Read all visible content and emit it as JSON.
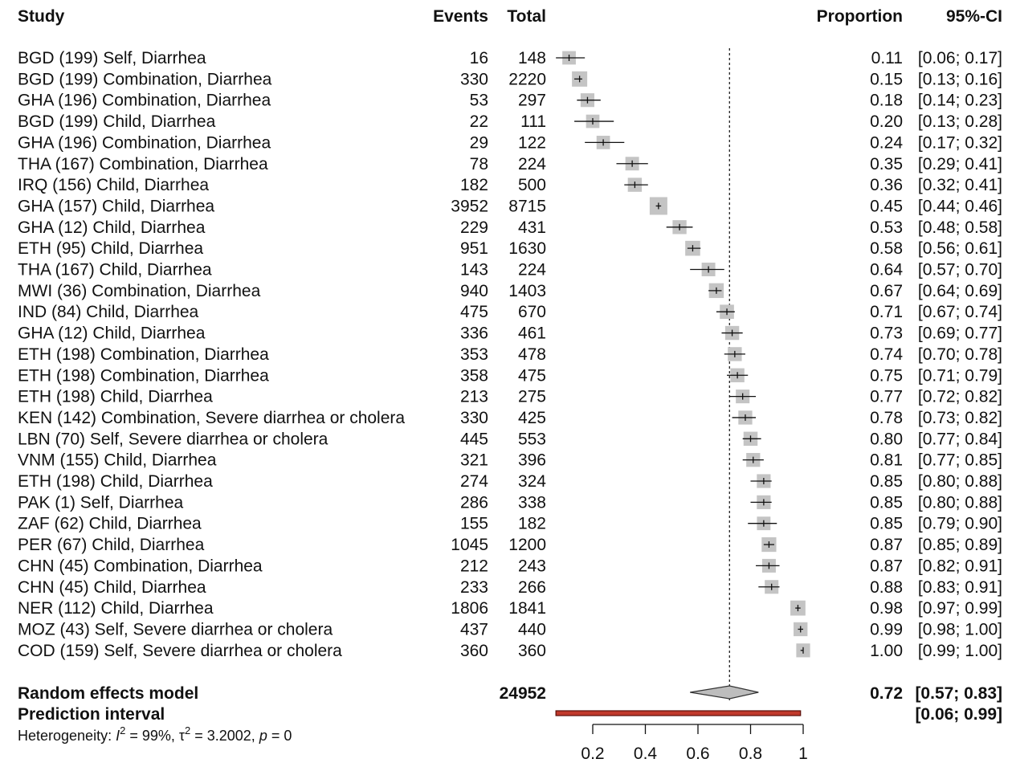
{
  "headers": {
    "study": "Study",
    "events": "Events",
    "total": "Total",
    "proportion": "Proportion",
    "ci": "95%-CI"
  },
  "summary": {
    "random_label": "Random effects model",
    "random_total": "24952",
    "random_prop": "0.72",
    "random_ci": "[0.57; 0.83]",
    "random_est": 0.72,
    "random_lo": 0.57,
    "random_hi": 0.83,
    "prediction_label": "Prediction interval",
    "prediction_ci": "[0.06; 0.99]",
    "prediction_lo": 0.06,
    "prediction_hi": 0.99,
    "heterogeneity_prefix": "Heterogeneity: ",
    "heterogeneity_i2": "I",
    "heterogeneity_i2_rest": " = 99%, ",
    "heterogeneity_tau": "τ",
    "heterogeneity_tau_rest": " = 3.2002, ",
    "heterogeneity_p": "p",
    "heterogeneity_p_rest": " = 0",
    "superscript": "2"
  },
  "chart_data": {
    "type": "forest",
    "title": "",
    "xlabel": "",
    "xlim": [
      0.06,
      1
    ],
    "xticks": [
      0.2,
      0.4,
      0.6,
      0.8,
      1
    ],
    "xtick_labels": [
      "0.2",
      "0.4",
      "0.6",
      "0.8",
      "1"
    ],
    "reference_line": 0.72,
    "rows": [
      {
        "study": "BGD (199) Self, Diarrhea",
        "events": "16",
        "total": "148",
        "prop": "0.11",
        "ci": "[0.06; 0.17]",
        "est": 0.11,
        "lo": 0.06,
        "hi": 0.17
      },
      {
        "study": "BGD (199) Combination, Diarrhea",
        "events": "330",
        "total": "2220",
        "prop": "0.15",
        "ci": "[0.13; 0.16]",
        "est": 0.15,
        "lo": 0.13,
        "hi": 0.16
      },
      {
        "study": "GHA (196) Combination, Diarrhea",
        "events": "53",
        "total": "297",
        "prop": "0.18",
        "ci": "[0.14; 0.23]",
        "est": 0.18,
        "lo": 0.14,
        "hi": 0.23
      },
      {
        "study": "BGD (199) Child, Diarrhea",
        "events": "22",
        "total": "111",
        "prop": "0.20",
        "ci": "[0.13; 0.28]",
        "est": 0.2,
        "lo": 0.13,
        "hi": 0.28
      },
      {
        "study": "GHA (196) Combination, Diarrhea",
        "events": "29",
        "total": "122",
        "prop": "0.24",
        "ci": "[0.17; 0.32]",
        "est": 0.24,
        "lo": 0.17,
        "hi": 0.32
      },
      {
        "study": "THA (167) Combination, Diarrhea",
        "events": "78",
        "total": "224",
        "prop": "0.35",
        "ci": "[0.29; 0.41]",
        "est": 0.35,
        "lo": 0.29,
        "hi": 0.41
      },
      {
        "study": "IRQ (156) Child, Diarrhea",
        "events": "182",
        "total": "500",
        "prop": "0.36",
        "ci": "[0.32; 0.41]",
        "est": 0.36,
        "lo": 0.32,
        "hi": 0.41
      },
      {
        "study": "GHA (157) Child, Diarrhea",
        "events": "3952",
        "total": "8715",
        "prop": "0.45",
        "ci": "[0.44; 0.46]",
        "est": 0.45,
        "lo": 0.44,
        "hi": 0.46
      },
      {
        "study": "GHA (12) Child, Diarrhea",
        "events": "229",
        "total": "431",
        "prop": "0.53",
        "ci": "[0.48; 0.58]",
        "est": 0.53,
        "lo": 0.48,
        "hi": 0.58
      },
      {
        "study": "ETH (95) Child, Diarrhea",
        "events": "951",
        "total": "1630",
        "prop": "0.58",
        "ci": "[0.56; 0.61]",
        "est": 0.58,
        "lo": 0.56,
        "hi": 0.61
      },
      {
        "study": "THA (167) Child, Diarrhea",
        "events": "143",
        "total": "224",
        "prop": "0.64",
        "ci": "[0.57; 0.70]",
        "est": 0.64,
        "lo": 0.57,
        "hi": 0.7
      },
      {
        "study": "MWI (36) Combination, Diarrhea",
        "events": "940",
        "total": "1403",
        "prop": "0.67",
        "ci": "[0.64; 0.69]",
        "est": 0.67,
        "lo": 0.64,
        "hi": 0.69
      },
      {
        "study": "IND (84) Child, Diarrhea",
        "events": "475",
        "total": "670",
        "prop": "0.71",
        "ci": "[0.67; 0.74]",
        "est": 0.71,
        "lo": 0.67,
        "hi": 0.74
      },
      {
        "study": "GHA (12) Child, Diarrhea",
        "events": "336",
        "total": "461",
        "prop": "0.73",
        "ci": "[0.69; 0.77]",
        "est": 0.73,
        "lo": 0.69,
        "hi": 0.77
      },
      {
        "study": "ETH (198) Combination, Diarrhea",
        "events": "353",
        "total": "478",
        "prop": "0.74",
        "ci": "[0.70; 0.78]",
        "est": 0.74,
        "lo": 0.7,
        "hi": 0.78
      },
      {
        "study": "ETH (198) Combination, Diarrhea",
        "events": "358",
        "total": "475",
        "prop": "0.75",
        "ci": "[0.71; 0.79]",
        "est": 0.75,
        "lo": 0.71,
        "hi": 0.79
      },
      {
        "study": "ETH (198) Child, Diarrhea",
        "events": "213",
        "total": "275",
        "prop": "0.77",
        "ci": "[0.72; 0.82]",
        "est": 0.77,
        "lo": 0.72,
        "hi": 0.82
      },
      {
        "study": "KEN (142) Combination, Severe diarrhea or cholera",
        "events": "330",
        "total": "425",
        "prop": "0.78",
        "ci": "[0.73; 0.82]",
        "est": 0.78,
        "lo": 0.73,
        "hi": 0.82
      },
      {
        "study": "LBN (70) Self, Severe diarrhea or cholera",
        "events": "445",
        "total": "553",
        "prop": "0.80",
        "ci": "[0.77; 0.84]",
        "est": 0.8,
        "lo": 0.77,
        "hi": 0.84
      },
      {
        "study": "VNM (155) Child, Diarrhea",
        "events": "321",
        "total": "396",
        "prop": "0.81",
        "ci": "[0.77; 0.85]",
        "est": 0.81,
        "lo": 0.77,
        "hi": 0.85
      },
      {
        "study": "ETH (198) Child, Diarrhea",
        "events": "274",
        "total": "324",
        "prop": "0.85",
        "ci": "[0.80; 0.88]",
        "est": 0.85,
        "lo": 0.8,
        "hi": 0.88
      },
      {
        "study": "PAK (1) Self, Diarrhea",
        "events": "286",
        "total": "338",
        "prop": "0.85",
        "ci": "[0.80; 0.88]",
        "est": 0.85,
        "lo": 0.8,
        "hi": 0.88
      },
      {
        "study": "ZAF (62) Child, Diarrhea",
        "events": "155",
        "total": "182",
        "prop": "0.85",
        "ci": "[0.79; 0.90]",
        "est": 0.85,
        "lo": 0.79,
        "hi": 0.9
      },
      {
        "study": "PER (67) Child, Diarrhea",
        "events": "1045",
        "total": "1200",
        "prop": "0.87",
        "ci": "[0.85; 0.89]",
        "est": 0.87,
        "lo": 0.85,
        "hi": 0.89
      },
      {
        "study": "CHN (45) Combination, Diarrhea",
        "events": "212",
        "total": "243",
        "prop": "0.87",
        "ci": "[0.82; 0.91]",
        "est": 0.87,
        "lo": 0.82,
        "hi": 0.91
      },
      {
        "study": "CHN (45) Child, Diarrhea",
        "events": "233",
        "total": "266",
        "prop": "0.88",
        "ci": "[0.83; 0.91]",
        "est": 0.88,
        "lo": 0.83,
        "hi": 0.91
      },
      {
        "study": "NER (112) Child, Diarrhea",
        "events": "1806",
        "total": "1841",
        "prop": "0.98",
        "ci": "[0.97; 0.99]",
        "est": 0.98,
        "lo": 0.97,
        "hi": 0.99
      },
      {
        "study": "MOZ (43) Self, Severe diarrhea or cholera",
        "events": "437",
        "total": "440",
        "prop": "0.99",
        "ci": "[0.98; 1.00]",
        "est": 0.99,
        "lo": 0.98,
        "hi": 1.0
      },
      {
        "study": "COD (159) Self, Severe diarrhea or cholera",
        "events": "360",
        "total": "360",
        "prop": "1.00",
        "ci": "[0.99; 1.00]",
        "est": 1.0,
        "lo": 0.99,
        "hi": 1.0
      }
    ]
  }
}
